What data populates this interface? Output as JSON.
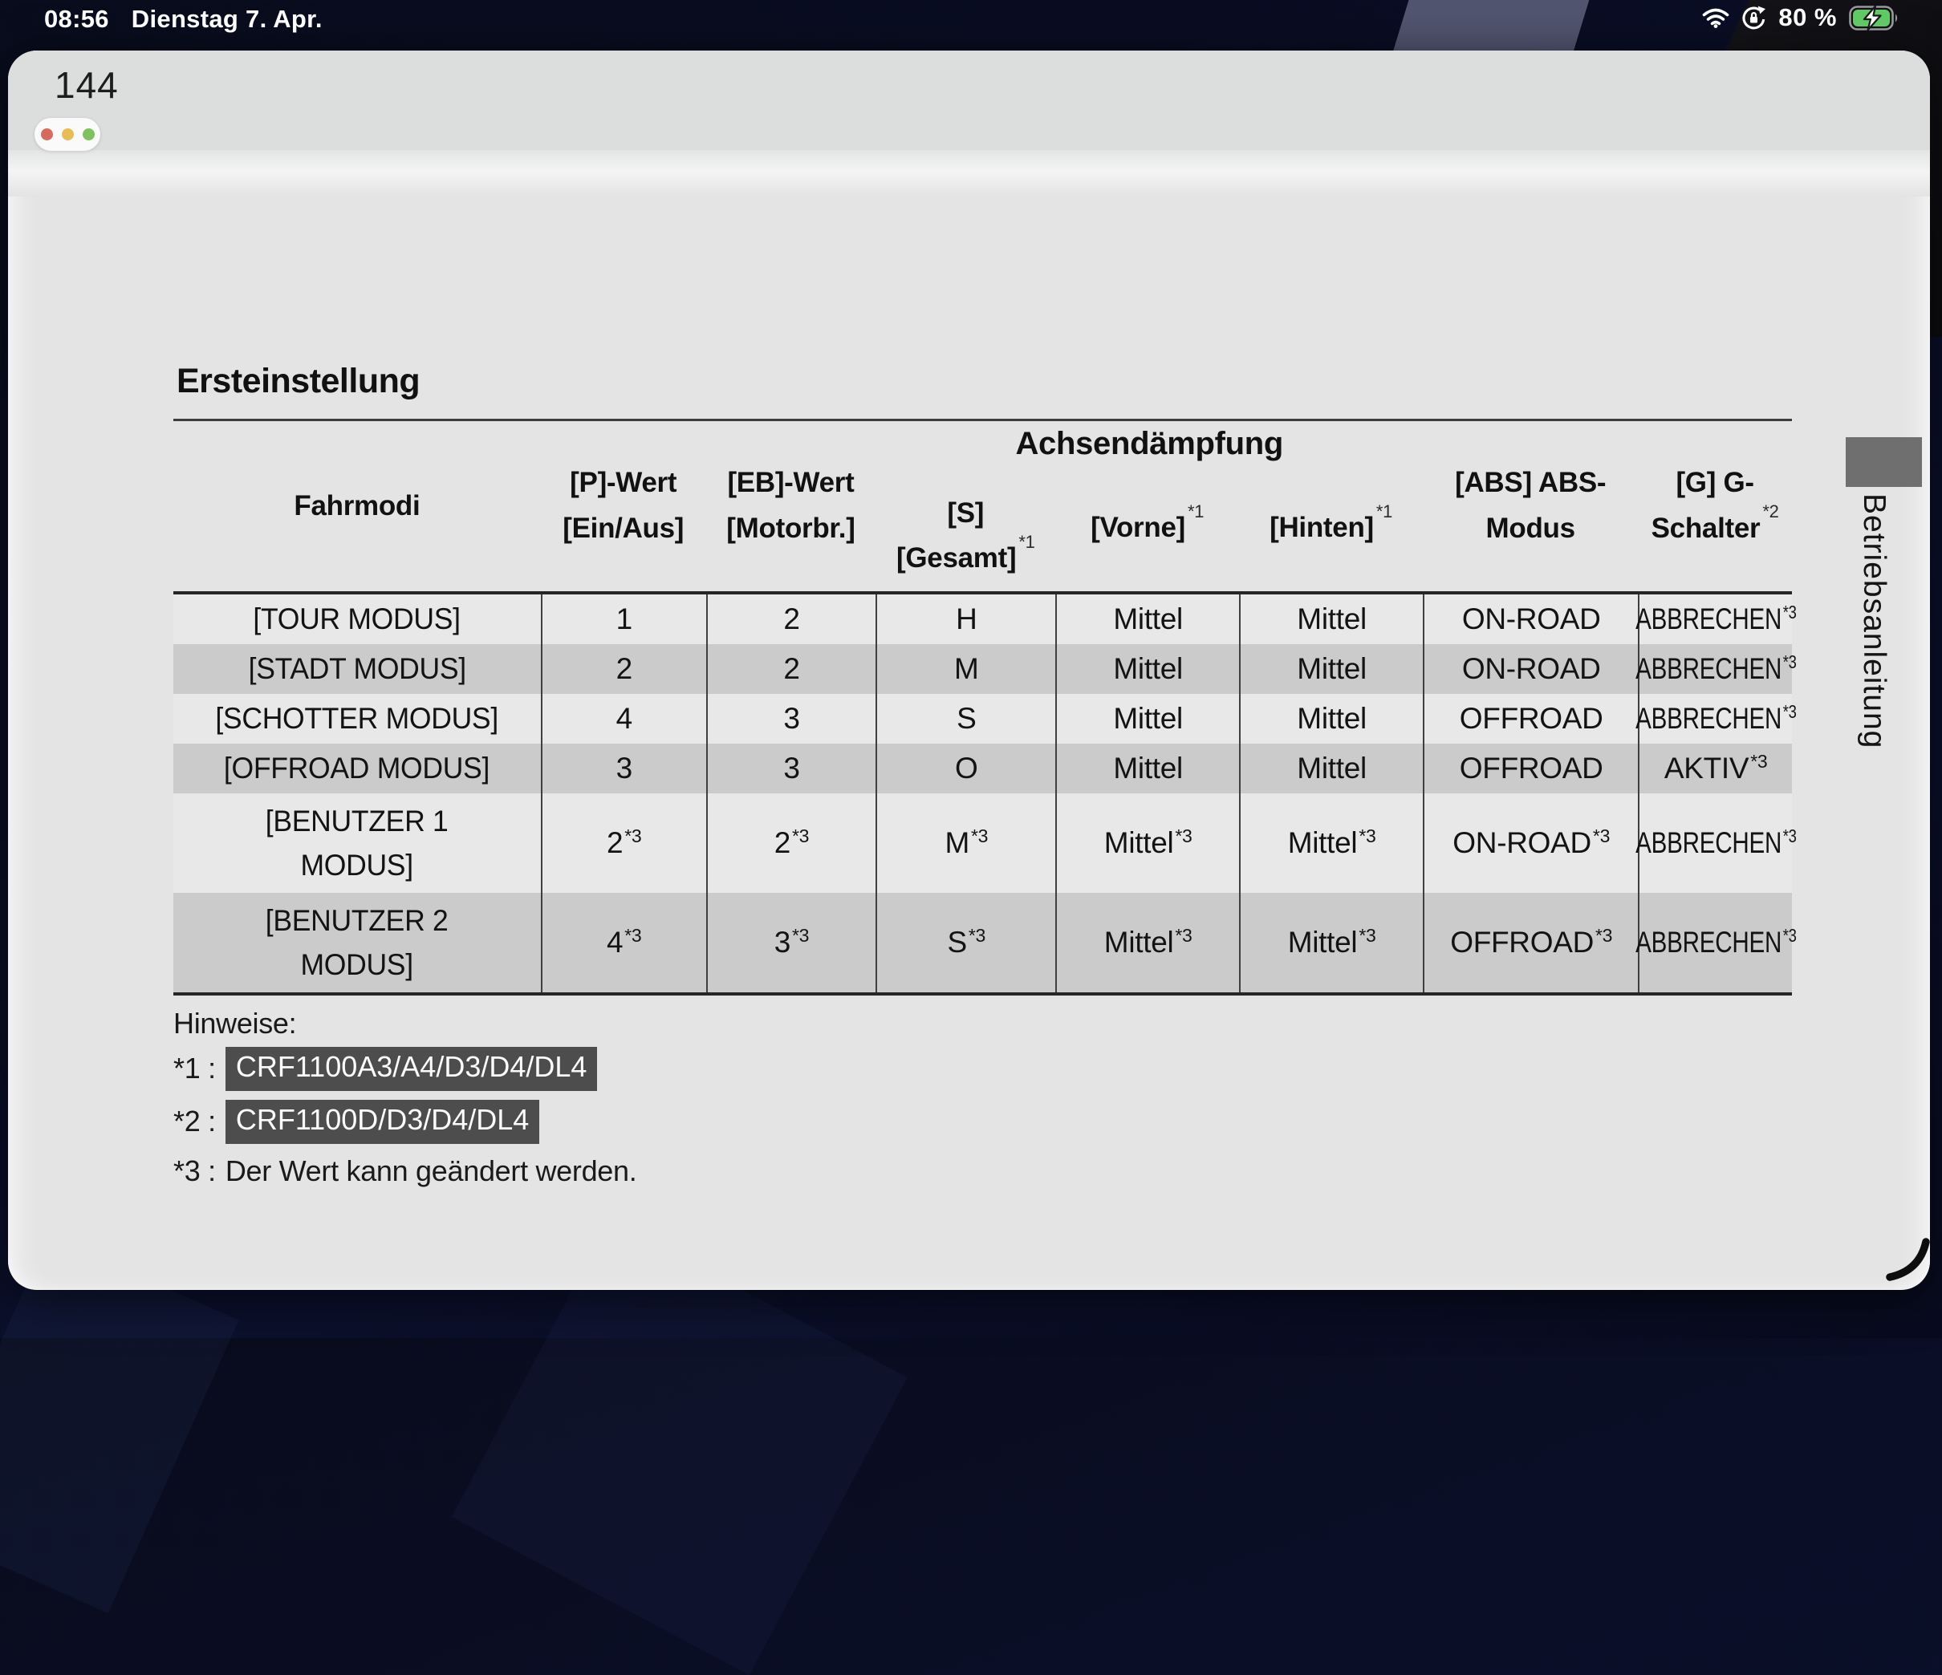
{
  "status_bar": {
    "time": "08:56",
    "date": "Dienstag 7. Apr.",
    "battery_percent": "80 %",
    "icons": [
      "wifi-icon",
      "orientation-lock-icon",
      "battery-charging-icon"
    ]
  },
  "window": {
    "page_number": "144",
    "side_tab_label": "Betriebsanleitung",
    "controls": [
      "close",
      "minimize",
      "zoom"
    ]
  },
  "document": {
    "title": "Ersteinstellung",
    "table": {
      "group_header": "Achsendämpfung",
      "headers": {
        "fahrmodi": "Fahrmodi",
        "p_wert": [
          "[P]-Wert",
          "[Ein/Aus]"
        ],
        "eb_wert": [
          "[EB]-Wert",
          "[Motorbr.]"
        ],
        "gesamt": [
          "[S]",
          "[Gesamt]"
        ],
        "gesamt_sup": "*1",
        "vorne": "[Vorne]",
        "vorne_sup": "*1",
        "hinten": "[Hinten]",
        "hinten_sup": "*1",
        "abs": [
          "[ABS] ABS-",
          "Modus"
        ],
        "g": [
          "[G] G-",
          "Schalter"
        ],
        "g_sup": "*2"
      },
      "col_widths_pct": [
        22.7,
        10.2,
        10.5,
        11.1,
        11.35,
        11.35,
        13.3,
        9.5
      ],
      "rows": [
        {
          "shade": false,
          "tall": false,
          "cells": [
            {
              "t": "[TOUR MODUS]"
            },
            {
              "t": "1"
            },
            {
              "t": "2"
            },
            {
              "t": "H"
            },
            {
              "t": "Mittel"
            },
            {
              "t": "Mittel"
            },
            {
              "t": "ON-ROAD"
            },
            {
              "t": "ABBRECHEN",
              "s": "*3"
            }
          ]
        },
        {
          "shade": true,
          "tall": false,
          "cells": [
            {
              "t": "[STADT MODUS]"
            },
            {
              "t": "2"
            },
            {
              "t": "2"
            },
            {
              "t": "M"
            },
            {
              "t": "Mittel"
            },
            {
              "t": "Mittel"
            },
            {
              "t": "ON-ROAD"
            },
            {
              "t": "ABBRECHEN",
              "s": "*3"
            }
          ]
        },
        {
          "shade": false,
          "tall": false,
          "cells": [
            {
              "t": "[SCHOTTER MODUS]"
            },
            {
              "t": "4"
            },
            {
              "t": "3"
            },
            {
              "t": "S"
            },
            {
              "t": "Mittel"
            },
            {
              "t": "Mittel"
            },
            {
              "t": "OFFROAD"
            },
            {
              "t": "ABBRECHEN",
              "s": "*3"
            }
          ]
        },
        {
          "shade": true,
          "tall": false,
          "cells": [
            {
              "t": "[OFFROAD MODUS]"
            },
            {
              "t": "3"
            },
            {
              "t": "3"
            },
            {
              "t": "O"
            },
            {
              "t": "Mittel"
            },
            {
              "t": "Mittel"
            },
            {
              "t": "OFFROAD"
            },
            {
              "t": "AKTIV",
              "s": "*3"
            }
          ]
        },
        {
          "shade": false,
          "tall": true,
          "cells": [
            {
              "t": "[BENUTZER 1\nMODUS]"
            },
            {
              "t": "2",
              "s": "*3"
            },
            {
              "t": "2",
              "s": "*3"
            },
            {
              "t": "M",
              "s": "*3"
            },
            {
              "t": "Mittel",
              "s": "*3"
            },
            {
              "t": "Mittel",
              "s": "*3"
            },
            {
              "t": "ON-ROAD",
              "s": "*3"
            },
            {
              "t": "ABBRECHEN",
              "s": "*3"
            }
          ]
        },
        {
          "shade": true,
          "tall": true,
          "cells": [
            {
              "t": "[BENUTZER 2\nMODUS]"
            },
            {
              "t": "4",
              "s": "*3"
            },
            {
              "t": "3",
              "s": "*3"
            },
            {
              "t": "S",
              "s": "*3"
            },
            {
              "t": "Mittel",
              "s": "*3"
            },
            {
              "t": "Mittel",
              "s": "*3"
            },
            {
              "t": "OFFROAD",
              "s": "*3"
            },
            {
              "t": "ABBRECHEN",
              "s": "*3"
            }
          ]
        }
      ]
    },
    "notes": {
      "label": "Hinweise:",
      "items": [
        {
          "marker": "*1 :",
          "text": "CRF1100A3/A4/D3/D4/DL4",
          "highlight": true
        },
        {
          "marker": "*2 :",
          "text": "CRF1100D/D3/D4/DL4",
          "highlight": true
        },
        {
          "marker": "*3 :",
          "text": "Der Wert kann geändert werden.",
          "highlight": false
        }
      ]
    }
  },
  "colors": {
    "battery_green": "#5fc963",
    "dot_red": "#d9695c",
    "dot_yellow": "#e7bd55",
    "dot_green": "#7ec15f",
    "row_shade": "#cbcbcb",
    "row_light": "#e8e8e8",
    "chip_bg": "#4d4d4d",
    "side_tab_rect": "#6f6f6f",
    "wallpaper_navy": "#0a0e26"
  }
}
